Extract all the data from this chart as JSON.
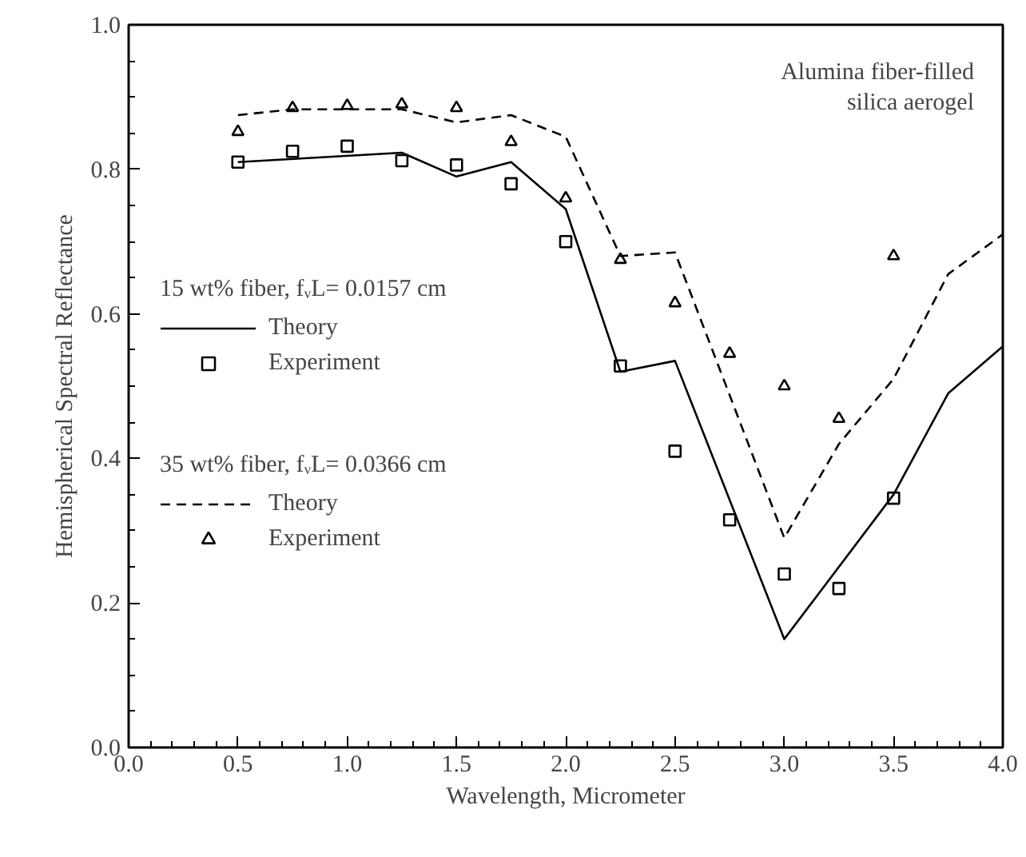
{
  "chart_data": {
    "type": "line",
    "xlabel": "Wavelength, Micrometer",
    "ylabel": "Hemispherical Spectral Reflectance",
    "annotations": [
      "Alumina fiber-filled silica aerogel",
      "15 wt% fiber, fᵥL= 0.0157 cm",
      "35 wt% fiber, fᵥL= 0.0366 cm"
    ],
    "xlim": [
      0.0,
      4.0
    ],
    "ylim": [
      0.0,
      1.0
    ],
    "xticks": [
      {
        "value": 0,
        "label": "0.0"
      },
      0.5,
      {
        "value": 1,
        "label": "1.0"
      },
      1.5,
      {
        "value": 2,
        "label": "2.0"
      },
      2.5,
      {
        "value": 3,
        "label": "3.0"
      },
      3.5,
      {
        "value": 4,
        "label": "4.0"
      }
    ],
    "yticks": [
      {
        "value": 0,
        "label": "0.0"
      },
      0.2,
      0.4,
      0.6,
      0.8,
      {
        "value": 1,
        "label": "1.0"
      }
    ],
    "grid": false,
    "legend": "left",
    "series": [
      {
        "name": "Theory",
        "line_style": "solid",
        "color": "#000000",
        "x": [
          0.5,
          1.25,
          1.5,
          1.75,
          2.0,
          2.25,
          2.5,
          3.0,
          3.5,
          3.75,
          4.0
        ],
        "values": [
          0.81,
          0.823,
          0.79,
          0.81,
          0.745,
          0.52,
          0.535,
          0.15,
          0.35,
          0.49,
          0.555
        ]
      },
      {
        "name": "Experiment",
        "type": "scatter",
        "marker": "square",
        "color": "#000000",
        "x": [
          0.5,
          0.75,
          1.0,
          1.25,
          1.5,
          1.75,
          2.0,
          2.25,
          2.5,
          2.75,
          3.0,
          3.25,
          3.5
        ],
        "values": [
          0.81,
          0.825,
          0.832,
          0.812,
          0.806,
          0.78,
          0.7,
          0.528,
          0.41,
          0.315,
          0.24,
          0.22,
          0.345
        ]
      },
      {
        "name": "Theory",
        "line_style": "dashed",
        "color": "#000000",
        "x": [
          0.5,
          0.75,
          1.25,
          1.5,
          1.75,
          2.0,
          2.25,
          2.5,
          3.0,
          3.25,
          3.5,
          3.75,
          4.0
        ],
        "values": [
          0.875,
          0.883,
          0.883,
          0.865,
          0.875,
          0.845,
          0.68,
          0.685,
          0.29,
          0.42,
          0.51,
          0.655,
          0.71
        ]
      },
      {
        "name": "Experiment",
        "type": "scatter",
        "marker": "triangle",
        "color": "#000000",
        "x": [
          0.5,
          0.75,
          1.0,
          1.25,
          1.5,
          1.75,
          2.0,
          2.25,
          2.5,
          2.75,
          3.0,
          3.25,
          3.5
        ],
        "values": [
          0.852,
          0.885,
          0.888,
          0.89,
          0.885,
          0.838,
          0.76,
          0.675,
          0.615,
          0.545,
          0.5,
          0.455,
          0.68
        ]
      }
    ]
  }
}
